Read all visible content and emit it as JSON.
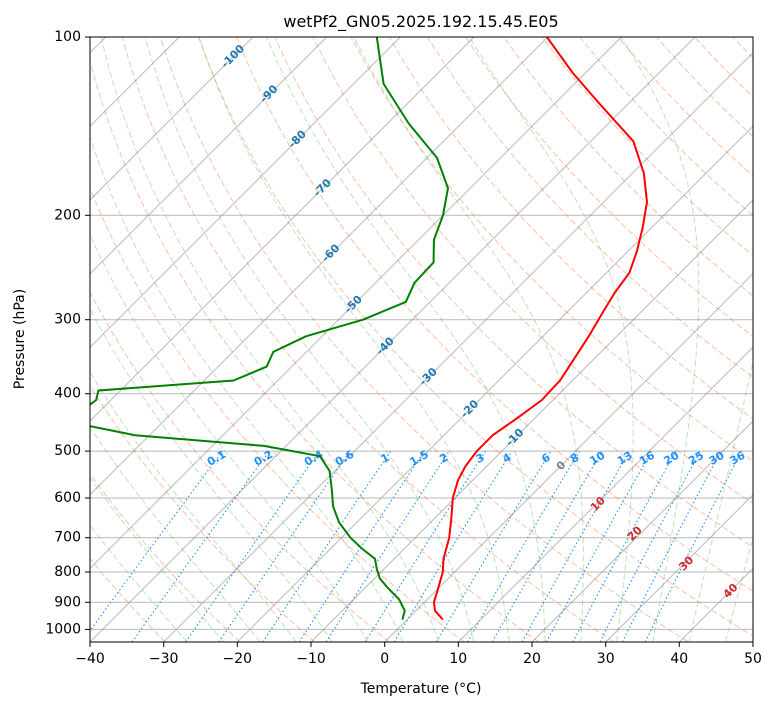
{
  "chart_data": {
    "type": "skew-t",
    "title": "wetPf2_GN05.2025.192.15.45.E05",
    "xlabel": "Temperature (°C)",
    "ylabel": "Pressure (hPa)",
    "xlim": [
      -40,
      50
    ],
    "ylim_hpa": [
      1050,
      100
    ],
    "x_ticks": [
      -40,
      -30,
      -20,
      -10,
      0,
      10,
      20,
      30,
      40,
      50
    ],
    "y_ticks": [
      100,
      200,
      300,
      400,
      500,
      600,
      700,
      800,
      900,
      1000
    ],
    "grid": true,
    "skew": 45,
    "temperature_profile": {
      "color": "#ff0000",
      "points": [
        [
          960,
          4.7
        ],
        [
          930,
          2.6
        ],
        [
          900,
          1.3
        ],
        [
          860,
          0.2
        ],
        [
          800,
          -1.6
        ],
        [
          760,
          -3.3
        ],
        [
          700,
          -5.4
        ],
        [
          650,
          -7.7
        ],
        [
          600,
          -10.3
        ],
        [
          560,
          -12.0
        ],
        [
          530,
          -12.9
        ],
        [
          500,
          -13.4
        ],
        [
          470,
          -13.4
        ],
        [
          440,
          -12.4
        ],
        [
          410,
          -11.5
        ],
        [
          380,
          -11.7
        ],
        [
          350,
          -12.7
        ],
        [
          320,
          -13.8
        ],
        [
          290,
          -15.2
        ],
        [
          270,
          -16.2
        ],
        [
          250,
          -16.9
        ],
        [
          230,
          -18.8
        ],
        [
          210,
          -21.2
        ],
        [
          190,
          -24.1
        ],
        [
          170,
          -28.4
        ],
        [
          150,
          -34.2
        ],
        [
          130,
          -43.7
        ],
        [
          115,
          -51.7
        ],
        [
          100,
          -60.1
        ]
      ]
    },
    "dewpoint_profile": {
      "color": "#008000",
      "points": [
        [
          960,
          -0.7
        ],
        [
          930,
          -1.5
        ],
        [
          890,
          -3.8
        ],
        [
          850,
          -7.0
        ],
        [
          820,
          -9.3
        ],
        [
          790,
          -11.0
        ],
        [
          760,
          -12.6
        ],
        [
          730,
          -15.8
        ],
        [
          700,
          -18.8
        ],
        [
          660,
          -22.4
        ],
        [
          620,
          -25.4
        ],
        [
          580,
          -27.9
        ],
        [
          540,
          -30.7
        ],
        [
          510,
          -34.0
        ],
        [
          490,
          -43.0
        ],
        [
          470,
          -62.0
        ],
        [
          450,
          -71.0
        ],
        [
          430,
          -72.6
        ],
        [
          410,
          -72.0
        ],
        [
          395,
          -73.0
        ],
        [
          380,
          -56.0
        ],
        [
          360,
          -53.4
        ],
        [
          340,
          -54.5
        ],
        [
          320,
          -52.2
        ],
        [
          300,
          -46.7
        ],
        [
          280,
          -43.3
        ],
        [
          260,
          -44.7
        ],
        [
          240,
          -44.9
        ],
        [
          220,
          -47.9
        ],
        [
          200,
          -50.0
        ],
        [
          180,
          -53.0
        ],
        [
          160,
          -58.6
        ],
        [
          140,
          -67.1
        ],
        [
          120,
          -75.9
        ],
        [
          100,
          -83.2
        ]
      ]
    },
    "isotherm_labels": [
      -100,
      -90,
      -80,
      -70,
      -60,
      -50,
      -40,
      -30,
      -20,
      -10
    ],
    "mixing_ratio_labels": [
      "0.1",
      "0.2",
      "0.4",
      "0.6",
      "1",
      "1.5",
      "2",
      "3",
      "4",
      "6",
      "8",
      "10",
      "13",
      "16",
      "20",
      "25",
      "30",
      "36"
    ],
    "mixing_ratio_values": [
      0.1,
      0.2,
      0.4,
      0.6,
      1,
      1.5,
      2,
      3,
      4,
      6,
      8,
      10,
      13,
      16,
      20,
      25,
      30,
      36
    ],
    "moist_adiabat_labels": [
      "0",
      "10",
      "20",
      "30",
      "40"
    ],
    "moist_adiabat_values": [
      0,
      10,
      20,
      30,
      40
    ],
    "colors": {
      "dry_adiabat": "#ff7f50",
      "moist_adiabat": "#2ca02c",
      "mixing_ratio": "#1e90ff",
      "isotherm": "#808080",
      "isotherm_label": "#1f77b4",
      "moist_label": "#d62728",
      "zero_label": "#808080"
    }
  }
}
